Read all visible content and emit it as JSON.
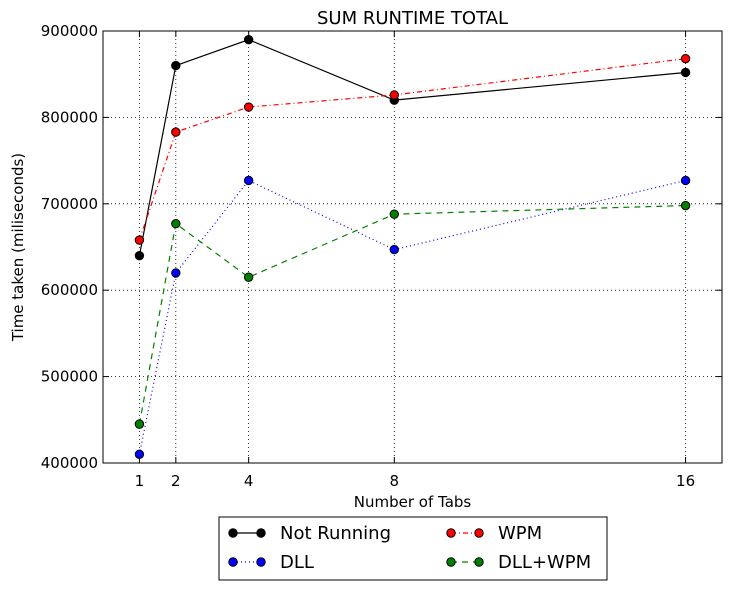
{
  "chart_data": {
    "type": "line",
    "title": "SUM RUNTIME TOTAL",
    "xlabel": "Number of Tabs",
    "ylabel": "Time taken (miliseconds)",
    "x": [
      1,
      2,
      4,
      8,
      16
    ],
    "x_ticks": [
      "1",
      "2",
      "4",
      "8",
      "16"
    ],
    "xlim": [
      0,
      17
    ],
    "ylim": [
      400000,
      900000
    ],
    "y_ticks": [
      "400000",
      "500000",
      "600000",
      "700000",
      "800000",
      "900000"
    ],
    "y_tick_values": [
      400000,
      500000,
      600000,
      700000,
      800000,
      900000
    ],
    "grid": true,
    "legend_position": "bottom-center",
    "series": [
      {
        "name": "Not Running",
        "color": "#000000",
        "line_style": "solid",
        "marker": "circle",
        "values": [
          640000,
          860000,
          890000,
          820000,
          852000
        ]
      },
      {
        "name": "WPM",
        "color": "#ff0000",
        "line_style": "dash-dot",
        "marker": "circle",
        "values": [
          658000,
          783000,
          812000,
          826000,
          868000
        ]
      },
      {
        "name": "DLL",
        "color": "#0000ff",
        "line_style": "dotted",
        "marker": "circle",
        "values": [
          410000,
          620000,
          727000,
          647000,
          727000
        ]
      },
      {
        "name": "DLL+WPM",
        "color": "#008000",
        "line_style": "dashed",
        "marker": "circle",
        "values": [
          445000,
          677000,
          615000,
          688000,
          698000
        ]
      }
    ]
  }
}
